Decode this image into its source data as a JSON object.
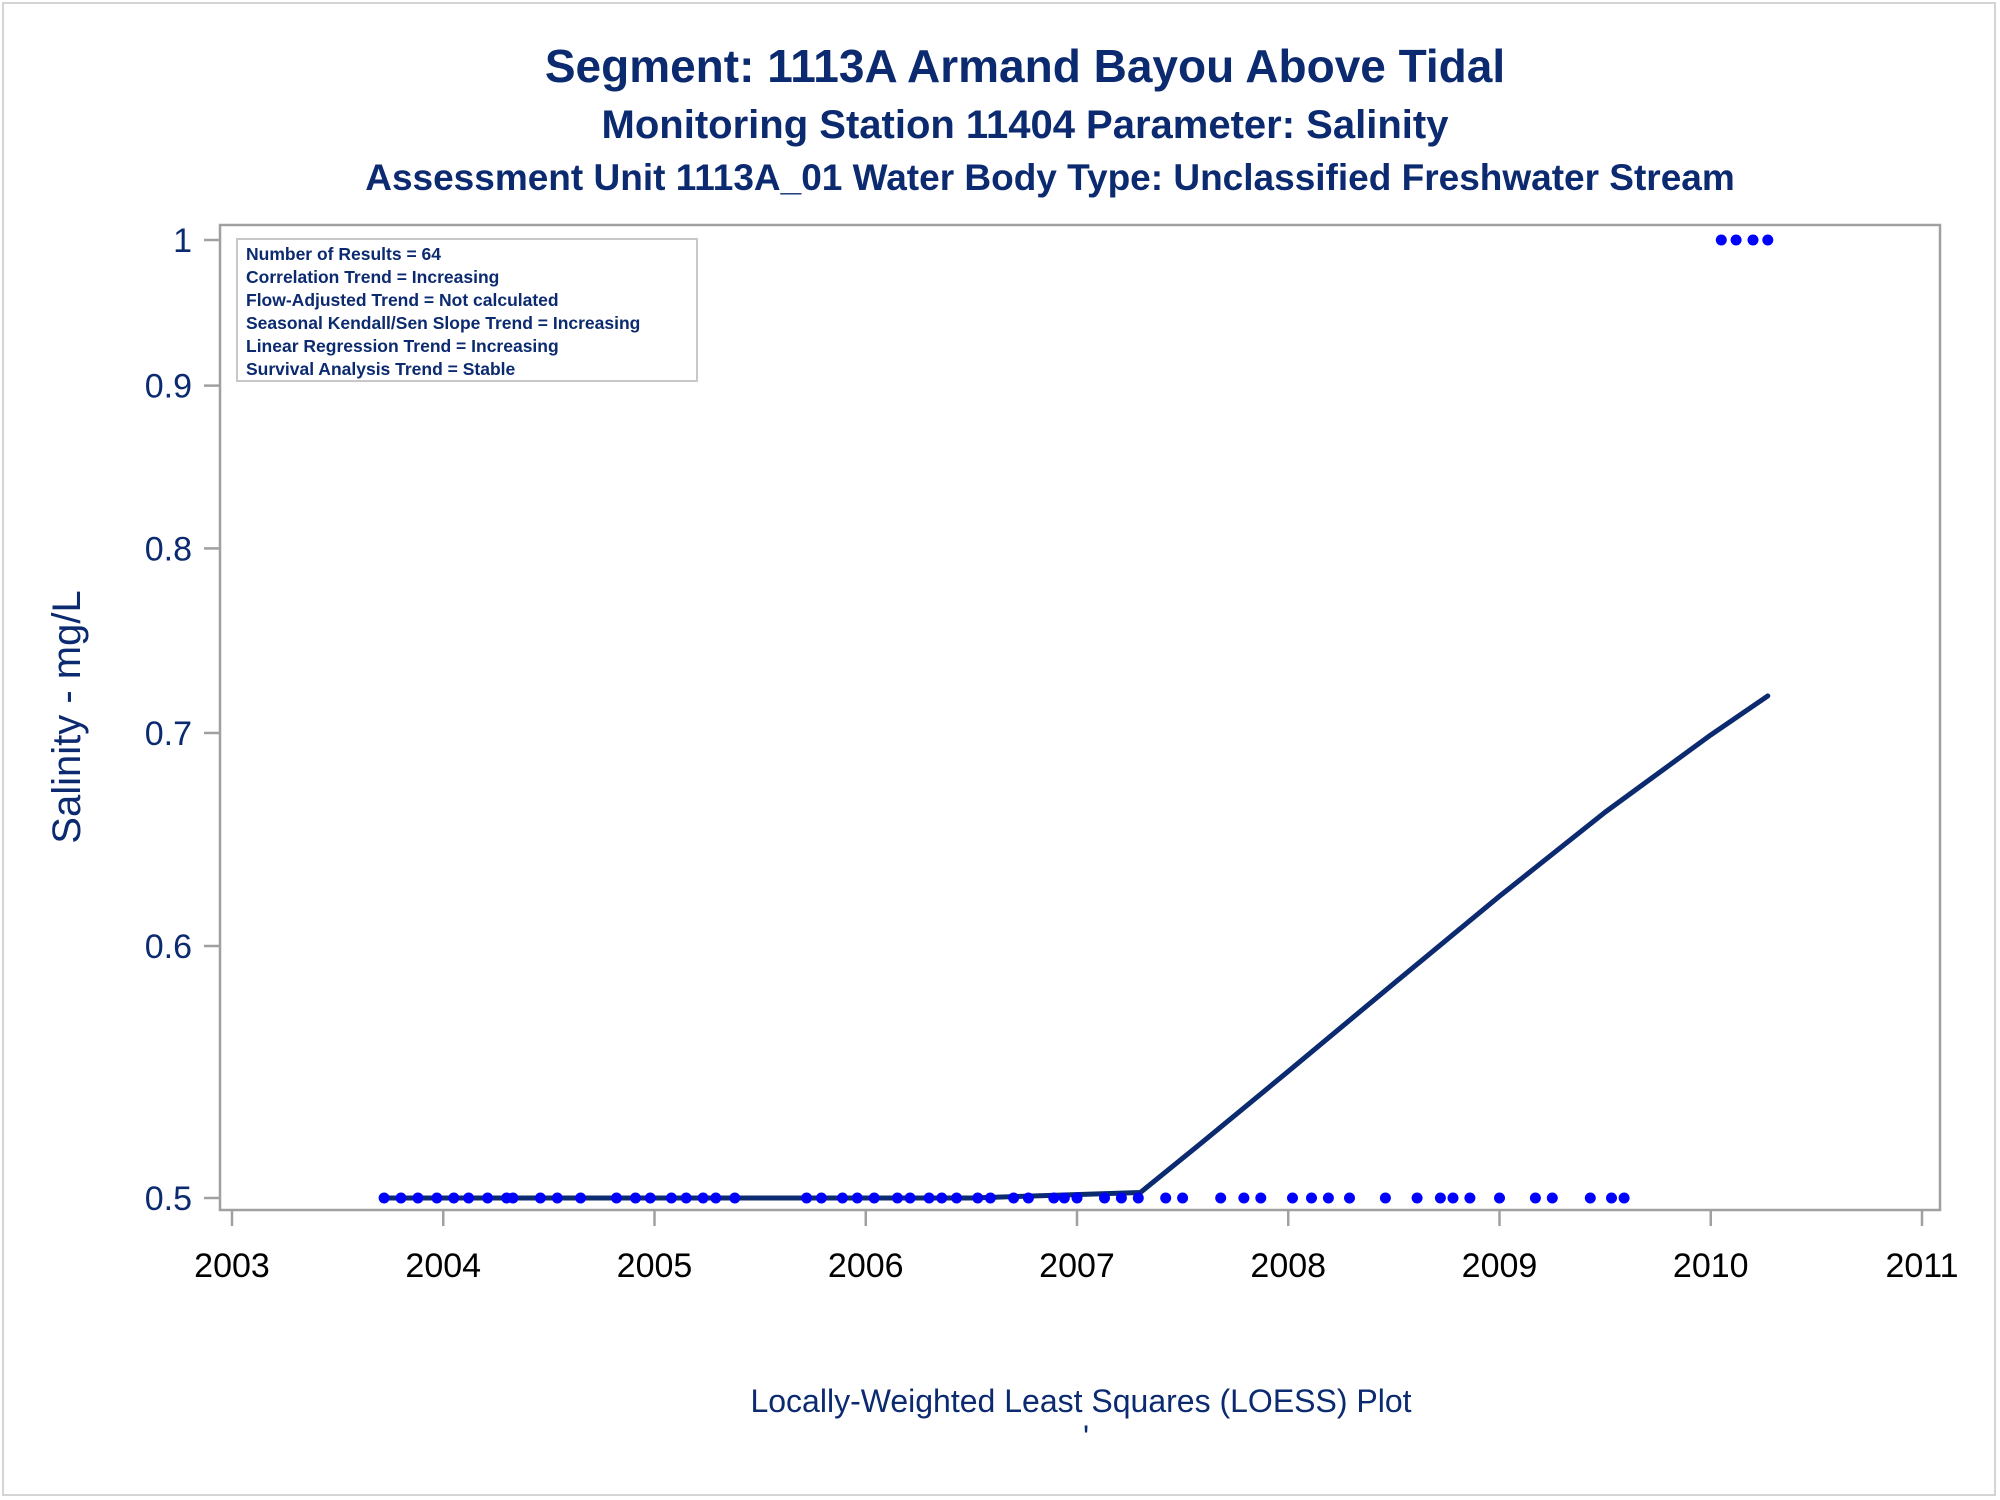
{
  "titles": {
    "line1": "Segment: 1113A  Armand Bayou Above Tidal",
    "line2": "Monitoring Station 11404 Parameter: Salinity",
    "line3": "Assessment Unit 1113A_01   Water Body Type: Unclassified Freshwater Stream"
  },
  "footer": {
    "text": "Locally-Weighted Least Squares (LOESS) Plot",
    "mark": "'"
  },
  "inset_lines": [
    "Number of Results = 64",
    "Correlation Trend = Increasing",
    "Flow-Adjusted Trend = Not calculated",
    "Seasonal Kendall/Sen Slope Trend = Increasing",
    "Linear Regression Trend = Increasing",
    "Survival Analysis Trend = Stable"
  ],
  "colors": {
    "text": "#0b2a6f",
    "points": "#0000ff",
    "loess_line": "#0b2a6f",
    "axis": "#a0a0a0"
  },
  "chart_data": {
    "type": "scatter",
    "title": "Segment: 1113A  Armand Bayou Above Tidal",
    "xlabel": "Locally-Weighted Least Squares (LOESS) Plot",
    "ylabel": "Salinity - mg/L",
    "xlim": [
      2003,
      2011
    ],
    "ylim": [
      0.5,
      1.0
    ],
    "y_scale": "log",
    "x_ticks": [
      "2003",
      "2004",
      "2005",
      "2006",
      "2007",
      "2008",
      "2009",
      "2010",
      "2011"
    ],
    "y_ticks": [
      0.5,
      0.6,
      0.7,
      0.8,
      0.9,
      1.0
    ],
    "y_tick_labels": [
      "0.5",
      "0.6",
      "0.7",
      "0.8",
      "0.9",
      "1"
    ],
    "grid": false,
    "series": [
      {
        "kind": "points",
        "x": [
          2003.72,
          2003.8,
          2003.88,
          2003.97,
          2004.05,
          2004.12,
          2004.21,
          2004.3,
          2004.33,
          2004.46,
          2004.54,
          2004.65,
          2004.82,
          2004.91,
          2004.98,
          2005.08,
          2005.15,
          2005.23,
          2005.29,
          2005.38,
          2005.72,
          2005.79,
          2005.89,
          2005.96,
          2006.04,
          2006.15,
          2006.21,
          2006.3,
          2006.36,
          2006.43,
          2006.53,
          2006.59,
          2006.7,
          2006.77,
          2006.89,
          2006.94,
          2007.0,
          2007.13,
          2007.21,
          2007.29,
          2007.42,
          2007.5,
          2007.68,
          2007.79,
          2007.87,
          2008.02,
          2008.11,
          2008.19,
          2008.29,
          2008.46,
          2008.61,
          2008.72,
          2008.78,
          2008.86,
          2009.0,
          2009.17,
          2009.25,
          2009.43,
          2009.53,
          2009.59,
          2010.05,
          2010.12,
          2010.2,
          2010.27
        ],
        "y": [
          0.5,
          0.5,
          0.5,
          0.5,
          0.5,
          0.5,
          0.5,
          0.5,
          0.5,
          0.5,
          0.5,
          0.5,
          0.5,
          0.5,
          0.5,
          0.5,
          0.5,
          0.5,
          0.5,
          0.5,
          0.5,
          0.5,
          0.5,
          0.5,
          0.5,
          0.5,
          0.5,
          0.5,
          0.5,
          0.5,
          0.5,
          0.5,
          0.5,
          0.5,
          0.5,
          0.5,
          0.5,
          0.5,
          0.5,
          0.5,
          0.5,
          0.5,
          0.5,
          0.5,
          0.5,
          0.5,
          0.5,
          0.5,
          0.5,
          0.5,
          0.5,
          0.5,
          0.5,
          0.5,
          0.5,
          0.5,
          0.5,
          0.5,
          0.5,
          0.5,
          1.0,
          1.0,
          1.0,
          1.0
        ]
      },
      {
        "kind": "loess_line",
        "x": [
          2003.72,
          2004.5,
          2005.5,
          2006.5,
          2006.9,
          2007.3,
          2007.6,
          2008.0,
          2008.5,
          2009.0,
          2009.5,
          2010.0,
          2010.27
        ],
        "y": [
          0.5,
          0.5,
          0.5,
          0.5,
          0.501,
          0.502,
          0.521,
          0.548,
          0.584,
          0.622,
          0.661,
          0.699,
          0.719
        ]
      }
    ]
  }
}
